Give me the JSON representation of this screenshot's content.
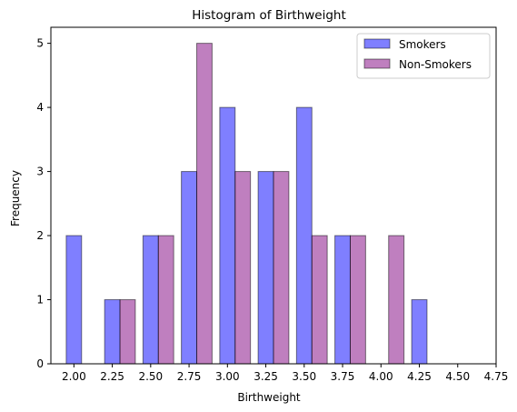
{
  "chart_data": {
    "type": "bar",
    "title": "Histogram of Birthweight",
    "xlabel": "Birthweight",
    "ylabel": "Frequency",
    "xlim": [
      1.85,
      4.75
    ],
    "ylim": [
      0,
      5.25
    ],
    "xticks": [
      "2.00",
      "2.25",
      "2.50",
      "2.75",
      "3.00",
      "3.25",
      "3.50",
      "3.75",
      "4.00",
      "4.25",
      "4.50",
      "4.75"
    ],
    "xtick_values": [
      2.0,
      2.25,
      2.5,
      2.75,
      3.0,
      3.25,
      3.5,
      3.75,
      4.0,
      4.25,
      4.5,
      4.75
    ],
    "yticks": [
      "0",
      "1",
      "2",
      "3",
      "4",
      "5"
    ],
    "ytick_values": [
      0,
      1,
      2,
      3,
      4,
      5
    ],
    "grid": false,
    "legend_position": "top-right",
    "bin_width": 0.1,
    "series": [
      {
        "name": "Smokers",
        "color": "#0000ff",
        "opacity": 0.5,
        "bins": [
          {
            "x0": 1.95,
            "x1": 2.05,
            "value": 2
          },
          {
            "x0": 2.2,
            "x1": 2.3,
            "value": 1
          },
          {
            "x0": 2.45,
            "x1": 2.55,
            "value": 2
          },
          {
            "x0": 2.7,
            "x1": 2.8,
            "value": 3
          },
          {
            "x0": 2.95,
            "x1": 3.05,
            "value": 4
          },
          {
            "x0": 3.2,
            "x1": 3.3,
            "value": 3
          },
          {
            "x0": 3.45,
            "x1": 3.55,
            "value": 4
          },
          {
            "x0": 3.7,
            "x1": 3.8,
            "value": 2
          },
          {
            "x0": 4.2,
            "x1": 4.3,
            "value": 1
          }
        ]
      },
      {
        "name": "Non-Smokers",
        "color": "#800080",
        "opacity": 0.5,
        "bins": [
          {
            "x0": 2.3,
            "x1": 2.4,
            "value": 1
          },
          {
            "x0": 2.55,
            "x1": 2.65,
            "value": 2
          },
          {
            "x0": 2.8,
            "x1": 2.9,
            "value": 5
          },
          {
            "x0": 3.05,
            "x1": 3.15,
            "value": 3
          },
          {
            "x0": 3.3,
            "x1": 3.4,
            "value": 3
          },
          {
            "x0": 3.55,
            "x1": 3.65,
            "value": 2
          },
          {
            "x0": 3.8,
            "x1": 3.9,
            "value": 2
          },
          {
            "x0": 4.05,
            "x1": 4.15,
            "value": 2
          }
        ]
      }
    ]
  }
}
